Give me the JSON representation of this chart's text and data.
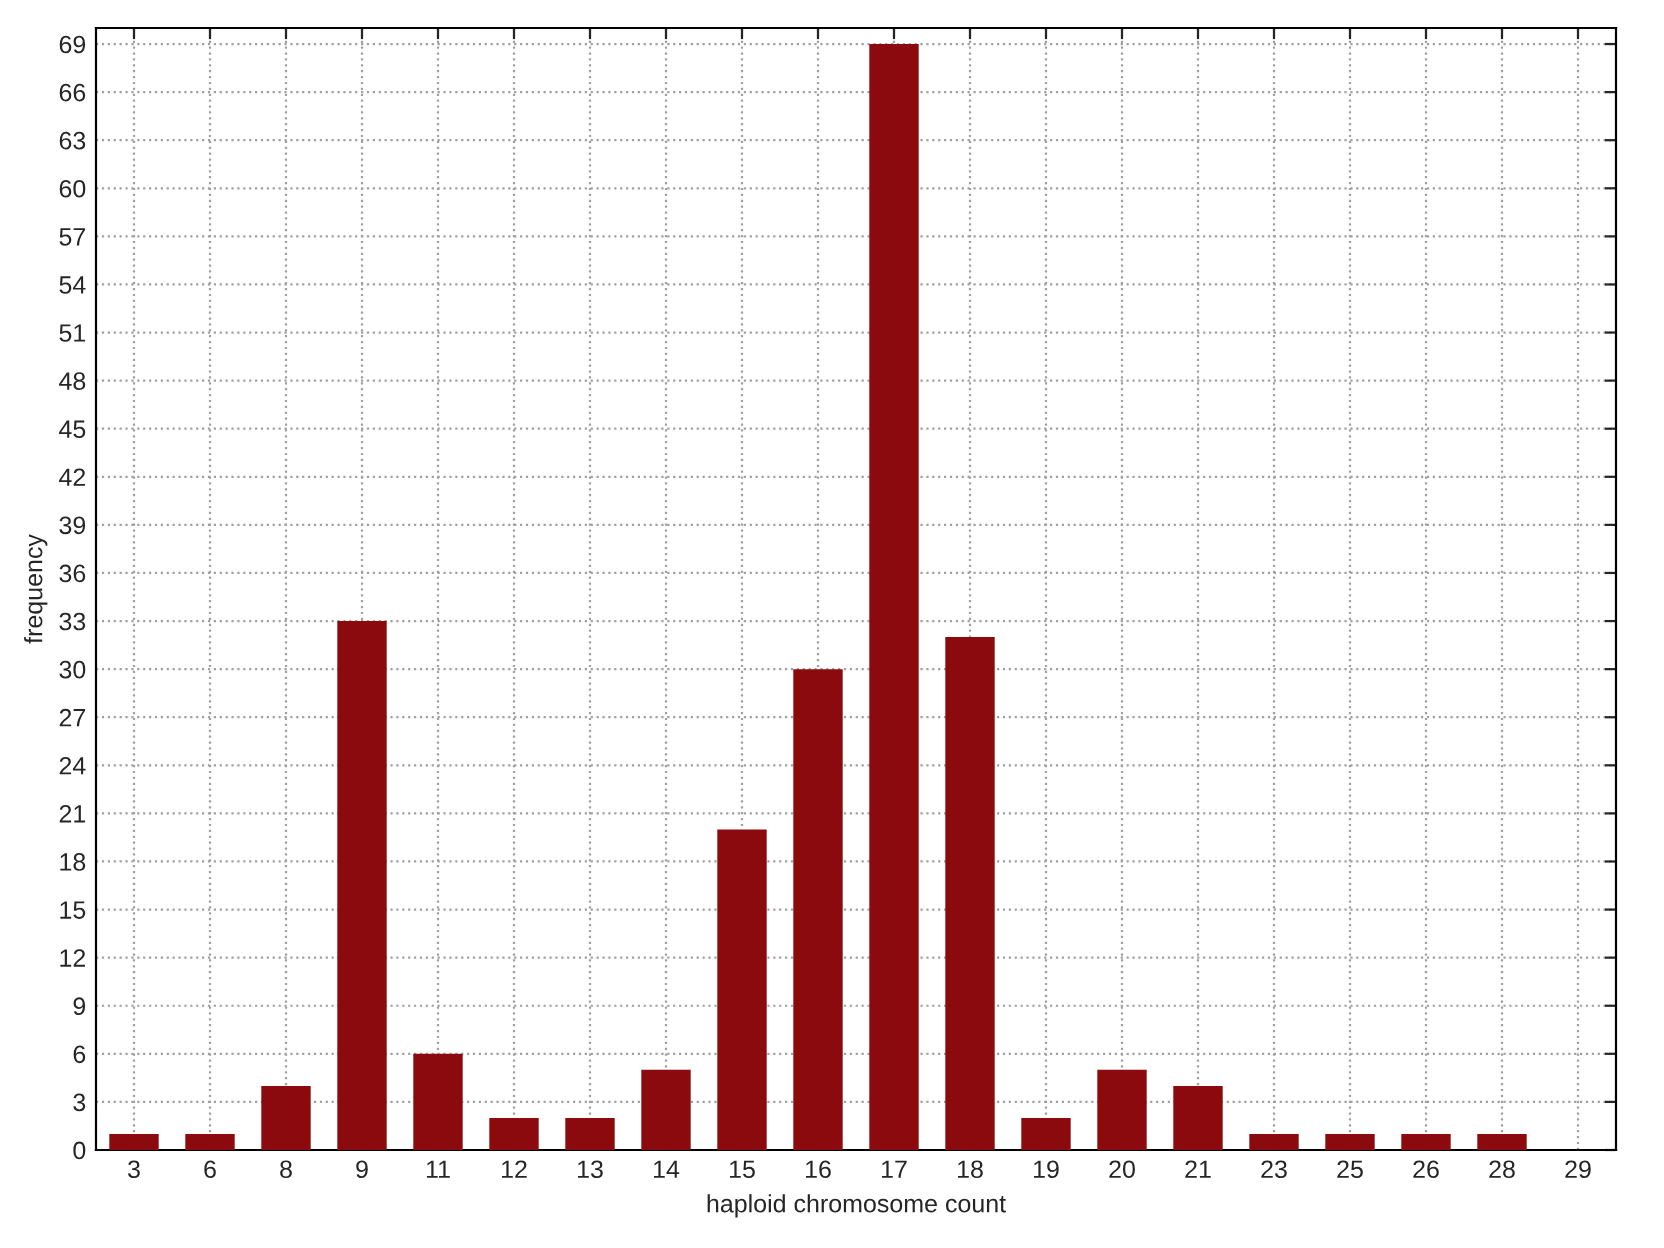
{
  "chart_data": {
    "type": "bar",
    "xlabel": "haploid chromosome count",
    "ylabel": "frequency",
    "categories": [
      "3",
      "6",
      "8",
      "9",
      "11",
      "12",
      "13",
      "14",
      "15",
      "16",
      "17",
      "18",
      "19",
      "20",
      "21",
      "23",
      "25",
      "26",
      "28",
      "29"
    ],
    "values": [
      1,
      1,
      4,
      33,
      6,
      2,
      2,
      5,
      20,
      30,
      69,
      32,
      2,
      5,
      4,
      1,
      1,
      1,
      1,
      0
    ],
    "color": "#8b0a0e",
    "ylim": [
      0,
      70
    ],
    "yticks": [
      0,
      3,
      6,
      9,
      12,
      15,
      18,
      21,
      24,
      27,
      30,
      33,
      36,
      39,
      42,
      45,
      48,
      51,
      54,
      57,
      60,
      63,
      66,
      69
    ],
    "grid": true,
    "line_style": "dotted"
  }
}
